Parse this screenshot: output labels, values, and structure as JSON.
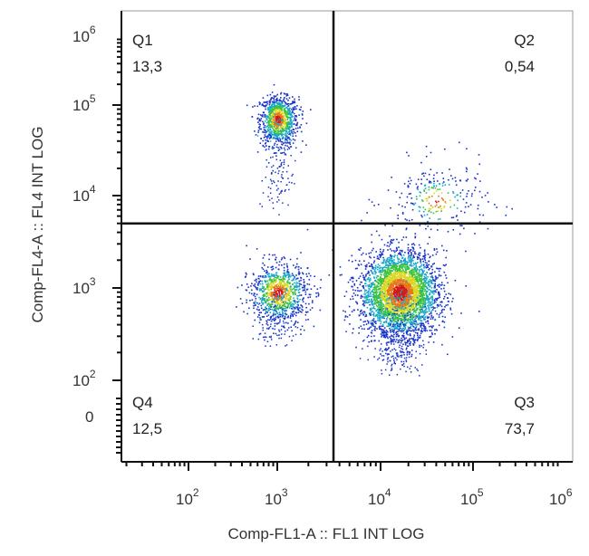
{
  "chart_data": {
    "type": "scatter",
    "style": "density dot plot",
    "xlabel": "Comp-FL1-A :: FL1 INT LOG",
    "ylabel": "Comp-FL4-A :: FL4 INT LOG",
    "x_scale": "biexponential",
    "y_scale": "biexponential",
    "x_ticks": [
      {
        "base": "10",
        "exp": "2",
        "value": 100
      },
      {
        "base": "10",
        "exp": "3",
        "value": 1000
      },
      {
        "base": "10",
        "exp": "4",
        "value": 10000
      },
      {
        "base": "10",
        "exp": "5",
        "value": 100000
      },
      {
        "base": "10",
        "exp": "6",
        "value": 1000000
      }
    ],
    "y_ticks": [
      {
        "base": "",
        "exp": "",
        "text": "0",
        "value": 0
      },
      {
        "base": "10",
        "exp": "2",
        "value": 100
      },
      {
        "base": "10",
        "exp": "3",
        "value": 1000
      },
      {
        "base": "10",
        "exp": "4",
        "value": 10000
      },
      {
        "base": "10",
        "exp": "5",
        "value": 100000
      },
      {
        "base": "10",
        "exp": "6",
        "value": 1000000
      }
    ],
    "gate": {
      "x": 3500,
      "y": 5000
    },
    "quadrants": [
      {
        "name": "Q1",
        "percent": "13,3",
        "position": "top-left"
      },
      {
        "name": "Q2",
        "percent": "0,54",
        "position": "top-right"
      },
      {
        "name": "Q3",
        "percent": "73,7",
        "position": "bottom-right"
      },
      {
        "name": "Q4",
        "percent": "12,5",
        "position": "bottom-left"
      }
    ],
    "populations": [
      {
        "quadrant": "Q1",
        "center_x": 1000,
        "center_y": 70000,
        "share": 13.3
      },
      {
        "quadrant": "Q2",
        "center_x": 40000,
        "center_y": 9000,
        "share": 0.54
      },
      {
        "quadrant": "Q3",
        "center_x": 16000,
        "center_y": 900,
        "share": 73.7
      },
      {
        "quadrant": "Q4",
        "center_x": 1000,
        "center_y": 900,
        "share": 12.5
      }
    ],
    "density_colors": [
      "#1a33c8",
      "#18a8c8",
      "#3cc23c",
      "#d8d820",
      "#e87818",
      "#d41818"
    ]
  }
}
